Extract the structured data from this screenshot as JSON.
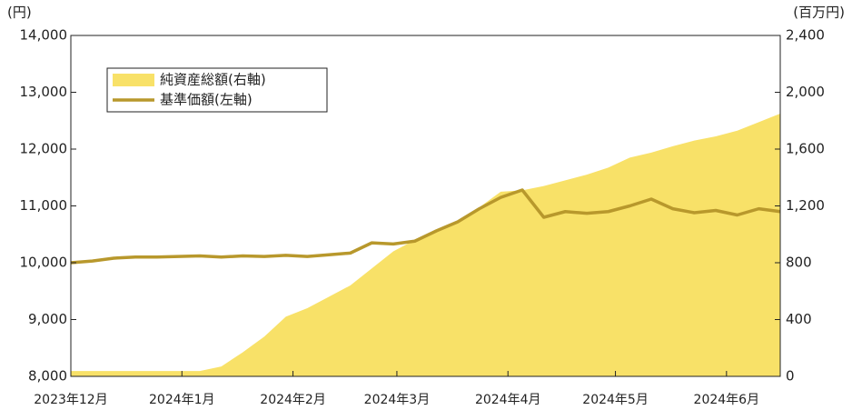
{
  "chart_data": {
    "type": "line_area",
    "y_unit_label": "(円)",
    "y2_unit_label": "(百万円)",
    "xlim": [
      0,
      198
    ],
    "xticks": [
      {
        "value": 0,
        "label": "2023年12月"
      },
      {
        "value": 31,
        "label": "2024年1月"
      },
      {
        "value": 62,
        "label": "2024年2月"
      },
      {
        "value": 91,
        "label": "2024年3月"
      },
      {
        "value": 122,
        "label": "2024年4月"
      },
      {
        "value": 152,
        "label": "2024年5月"
      },
      {
        "value": 183,
        "label": "2024年6月"
      }
    ],
    "ylim": [
      8000,
      14000
    ],
    "yticks": [
      {
        "value": 8000,
        "label": "8,000"
      },
      {
        "value": 9000,
        "label": "9,000"
      },
      {
        "value": 10000,
        "label": "10,000"
      },
      {
        "value": 11000,
        "label": "11,000"
      },
      {
        "value": 12000,
        "label": "12,000"
      },
      {
        "value": 13000,
        "label": "13,000"
      },
      {
        "value": 14000,
        "label": "14,000"
      }
    ],
    "y2lim": [
      0,
      2400
    ],
    "y2ticks": [
      0,
      400,
      800,
      {
        "value": 1200,
        "label": "1,200"
      },
      {
        "value": 1600,
        "label": "1,600"
      },
      {
        "value": 2000,
        "label": "2,000"
      },
      {
        "value": 2400,
        "label": "2,400"
      }
    ],
    "x": [
      0,
      6,
      12,
      18,
      24,
      30,
      36,
      42,
      48,
      54,
      60,
      66,
      72,
      78,
      84,
      90,
      96,
      102,
      108,
      114,
      120,
      126,
      132,
      138,
      144,
      150,
      156,
      162,
      168,
      174,
      180,
      186,
      192,
      198
    ],
    "series": [
      {
        "name": "純資産総額(右軸)",
        "color": "#f8e168",
        "kind": "area",
        "axis": "y2",
        "values": [
          38,
          38,
          38,
          38,
          38,
          38,
          38,
          70,
          170,
          280,
          420,
          480,
          560,
          640,
          760,
          880,
          960,
          1020,
          1090,
          1190,
          1300,
          1310,
          1340,
          1380,
          1420,
          1470,
          1540,
          1575,
          1620,
          1660,
          1690,
          1730,
          1790,
          1850
        ]
      },
      {
        "name": "基準価額(左軸)",
        "color": "#b8982c",
        "kind": "line",
        "axis": "y",
        "values": [
          10000,
          10030,
          10080,
          10100,
          10100,
          10110,
          10120,
          10100,
          10120,
          10110,
          10130,
          10110,
          10140,
          10170,
          10350,
          10330,
          10380,
          10560,
          10720,
          10950,
          11150,
          11280,
          10800,
          10900,
          10870,
          10900,
          11000,
          11120,
          10950,
          10880,
          10920,
          10840,
          10950,
          10900
        ]
      }
    ]
  }
}
